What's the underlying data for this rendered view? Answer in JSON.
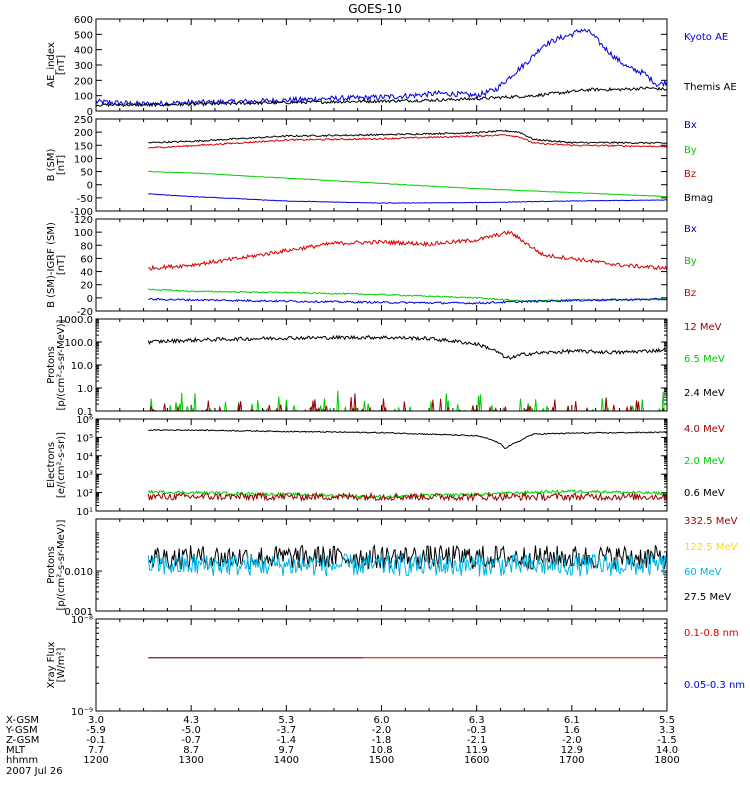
{
  "title": "GOES-10",
  "colors": {
    "black": "#000000",
    "blue": "#0000dd",
    "red": "#d40000",
    "green": "#00cc00",
    "yellow": "#ffdd00",
    "cyan": "#00b4e6",
    "brown": "#990000",
    "purple": "#7a0080"
  },
  "chart_data": [
    {
      "type": "line",
      "ylabel_lines": [
        "AE_index",
        "[nT]"
      ],
      "yscale": "linear",
      "ylim": [
        0,
        600
      ],
      "yticks": [
        0,
        100,
        200,
        300,
        400,
        500,
        600
      ],
      "ytick_labels": [
        "0",
        "100",
        "200",
        "300",
        "400",
        "500",
        "600"
      ],
      "legend": [
        {
          "text": "Kyoto AE",
          "color": "#0000dd"
        },
        {
          "text": "Themis AE",
          "color": "#000000"
        }
      ],
      "series": [
        {
          "name": "Kyoto AE",
          "color": "#0000dd",
          "x": [
            12.0,
            12.5,
            13.0,
            13.5,
            14.0,
            14.4,
            14.8,
            15.0,
            15.3,
            15.6,
            15.8,
            16.0,
            16.2,
            16.4,
            16.55,
            16.7,
            16.85,
            17.0,
            17.1,
            17.2,
            17.3,
            17.45,
            17.6,
            17.75,
            17.9,
            18.0
          ],
          "y": [
            60,
            45,
            55,
            60,
            70,
            80,
            85,
            90,
            100,
            115,
            110,
            100,
            140,
            250,
            330,
            430,
            470,
            500,
            530,
            510,
            440,
            350,
            280,
            250,
            170,
            190
          ],
          "noise": 18
        },
        {
          "name": "Themis AE",
          "color": "#000000",
          "x": [
            12.0,
            12.5,
            13.0,
            13.5,
            14.0,
            14.5,
            15.0,
            15.5,
            16.0,
            16.3,
            16.6,
            16.9,
            17.2,
            17.5,
            17.8,
            18.0
          ],
          "y": [
            40,
            40,
            45,
            50,
            55,
            60,
            65,
            70,
            80,
            90,
            100,
            120,
            140,
            140,
            150,
            140
          ],
          "noise": 10
        }
      ]
    },
    {
      "type": "line",
      "ylabel_lines": [
        "B (SM)",
        "[nT]"
      ],
      "yscale": "linear",
      "ylim": [
        -100,
        250
      ],
      "yticks": [
        -100,
        -50,
        0,
        50,
        100,
        150,
        200,
        250
      ],
      "ytick_labels": [
        "-100",
        "-50",
        "0",
        "50",
        "100",
        "150",
        "200",
        "250"
      ],
      "legend": [
        {
          "text": "Bx",
          "color": "#0000dd"
        },
        {
          "text": "By",
          "color": "#00cc00"
        },
        {
          "text": "Bz",
          "color": "#d40000"
        },
        {
          "text": "Bmag",
          "color": "#000000"
        }
      ],
      "series": [
        {
          "name": "Bmag",
          "color": "#000000",
          "x": [
            12.55,
            13.0,
            14.0,
            15.0,
            16.0,
            16.3,
            16.45,
            16.6,
            17.0,
            17.5,
            18.0
          ],
          "y": [
            160,
            165,
            185,
            190,
            198,
            205,
            200,
            172,
            160,
            160,
            158
          ],
          "noise": 3
        },
        {
          "name": "Bz",
          "color": "#d40000",
          "x": [
            12.55,
            13.0,
            14.0,
            15.0,
            16.0,
            16.3,
            16.45,
            16.6,
            17.0,
            17.5,
            18.0
          ],
          "y": [
            140,
            148,
            170,
            175,
            185,
            190,
            182,
            158,
            150,
            148,
            145
          ],
          "noise": 3
        },
        {
          "name": "By",
          "color": "#00cc00",
          "x": [
            12.55,
            13.0,
            14.0,
            15.0,
            16.0,
            17.0,
            18.0
          ],
          "y": [
            50,
            45,
            25,
            5,
            -15,
            -30,
            -45
          ],
          "noise": 1
        },
        {
          "name": "Bx",
          "color": "#0000dd",
          "x": [
            12.55,
            13.0,
            14.0,
            15.0,
            16.0,
            17.0,
            18.0
          ],
          "y": [
            -35,
            -45,
            -62,
            -70,
            -68,
            -62,
            -58
          ],
          "noise": 1
        }
      ]
    },
    {
      "type": "line",
      "ylabel_lines": [
        "B (SM)-IGRF (SM)",
        "[nT]"
      ],
      "yscale": "linear",
      "ylim": [
        -20,
        120
      ],
      "yticks": [
        -20,
        0,
        20,
        40,
        60,
        80,
        100,
        120
      ],
      "ytick_labels": [
        "-20",
        "0",
        "20",
        "40",
        "60",
        "80",
        "100",
        "120"
      ],
      "legend": [
        {
          "text": "Bx",
          "color": "#0000dd"
        },
        {
          "text": "By",
          "color": "#00cc00"
        },
        {
          "text": "Bz",
          "color": "#d40000"
        }
      ],
      "series": [
        {
          "name": "Bz",
          "color": "#d40000",
          "x": [
            12.55,
            13.0,
            13.5,
            14.0,
            14.5,
            15.0,
            15.5,
            16.0,
            16.2,
            16.35,
            16.5,
            16.7,
            17.0,
            17.5,
            18.0
          ],
          "y": [
            45,
            50,
            60,
            72,
            83,
            85,
            82,
            88,
            95,
            100,
            85,
            65,
            60,
            50,
            45
          ],
          "noise": 3
        },
        {
          "name": "By",
          "color": "#00cc00",
          "x": [
            12.55,
            13.0,
            14.0,
            15.0,
            16.0,
            16.5,
            17.0,
            18.0
          ],
          "y": [
            13,
            10,
            8,
            5,
            0,
            -5,
            -3,
            -2
          ],
          "noise": 1
        },
        {
          "name": "Bx",
          "color": "#0000dd",
          "x": [
            12.55,
            13.0,
            14.0,
            15.0,
            16.0,
            16.4,
            17.0,
            18.0
          ],
          "y": [
            -2,
            -3,
            -5,
            -7,
            -8,
            -6,
            -4,
            -2
          ],
          "noise": 1.5
        }
      ]
    },
    {
      "type": "line",
      "ylabel_lines": [
        "Protons",
        "[p/(cm²-s-sr-MeV)]"
      ],
      "yscale": "log",
      "ylim": [
        0.1,
        1000
      ],
      "yticks": [
        0.1,
        1,
        10,
        100,
        1000
      ],
      "ytick_labels": [
        "0.1",
        "1.0",
        "10.0",
        "100.0",
        "1000.0"
      ],
      "legend": [
        {
          "text": "12 MeV",
          "color": "#990000"
        },
        {
          "text": "6.5 MeV",
          "color": "#00cc00"
        },
        {
          "text": "2.4 MeV",
          "color": "#000000"
        }
      ],
      "series": [
        {
          "name": "2.4 MeV",
          "color": "#000000",
          "x": [
            12.55,
            13.0,
            14.0,
            15.0,
            15.5,
            16.0,
            16.2,
            16.3,
            16.4,
            16.5,
            17.0,
            17.5,
            18.0
          ],
          "y": [
            100,
            120,
            150,
            160,
            140,
            80,
            40,
            20,
            22,
            30,
            40,
            35,
            45
          ],
          "noise_log": 0.08
        },
        {
          "name": "6.5 MeV",
          "color": "#00cc00",
          "x": [
            12.55,
            18.0
          ],
          "y": [
            0.15,
            0.15
          ],
          "spikes": true
        },
        {
          "name": "12 MeV",
          "color": "#990000",
          "x": [
            12.55,
            18.0
          ],
          "y": [
            0.12,
            0.12
          ],
          "spikes": true
        }
      ]
    },
    {
      "type": "line",
      "ylabel_lines": [
        "Electrons",
        "[e/(cm²-s-sr)]"
      ],
      "yscale": "log",
      "ylim": [
        10,
        1000000
      ],
      "yticks": [
        10,
        100,
        1000,
        10000,
        100000,
        1000000
      ],
      "ytick_labels": [
        "10¹",
        "10²",
        "10³",
        "10⁴",
        "10⁵",
        "10⁶"
      ],
      "legend": [
        {
          "text": "4.0 MeV",
          "color": "#990000"
        },
        {
          "text": "2.0 MeV",
          "color": "#00cc00"
        },
        {
          "text": "0.6 MeV",
          "color": "#000000"
        }
      ],
      "series": [
        {
          "name": "0.6 MeV",
          "color": "#000000",
          "x": [
            12.55,
            13.0,
            14.0,
            15.0,
            15.5,
            16.0,
            16.2,
            16.3,
            16.45,
            16.6,
            17.0,
            17.5,
            18.0
          ],
          "y": [
            250000,
            250000,
            210000,
            180000,
            150000,
            120000,
            60000,
            25000,
            60000,
            150000,
            170000,
            180000,
            190000
          ],
          "noise_log": 0.03
        },
        {
          "name": "2.0 MeV",
          "color": "#00cc00",
          "x": [
            12.55,
            13.5,
            15.0,
            16.0,
            17.0,
            18.0
          ],
          "y": [
            110,
            90,
            60,
            80,
            120,
            90
          ],
          "noise_log": 0.08
        },
        {
          "name": "4.0 MeV",
          "color": "#990000",
          "x": [
            12.55,
            18.0
          ],
          "y": [
            60,
            60
          ],
          "noise_log": 0.2
        }
      ]
    },
    {
      "type": "line",
      "ylabel_lines": [
        "Protons",
        "[p/(cm²-s-sr-MeV)]"
      ],
      "yscale": "log",
      "ylim": [
        0.001,
        0.2
      ],
      "yticks": [
        0.001,
        0.01
      ],
      "ytick_labels": [
        "0.001",
        "0.010"
      ],
      "legend": [
        {
          "text": "332.5 MeV",
          "color": "#990000"
        },
        {
          "text": "122.5 MeV",
          "color": "#ffdd00"
        },
        {
          "text": "60 MeV",
          "color": "#00b4e6"
        },
        {
          "text": "27.5 MeV",
          "color": "#000000"
        }
      ],
      "series": [
        {
          "name": "27.5 MeV",
          "color": "#000000",
          "x": [
            12.55,
            18.0
          ],
          "y": [
            0.022,
            0.022
          ],
          "noise_log": 0.3
        },
        {
          "name": "60 MeV",
          "color": "#00b4e6",
          "x": [
            12.55,
            18.0
          ],
          "y": [
            0.014,
            0.014
          ],
          "noise_log": 0.28
        }
      ]
    },
    {
      "type": "line",
      "ylabel_lines": [
        "Xray Flux",
        "[W/m²]"
      ],
      "yscale": "log",
      "ylim": [
        1e-09,
        1e-08
      ],
      "yticks": [
        1e-09,
        1e-08
      ],
      "ytick_labels": [
        "10⁻⁹",
        "10⁻⁸"
      ],
      "legend": [
        {
          "text": "0.1-0.8 nm",
          "color": "#d40000"
        },
        {
          "text": "0.05-0.3 nm",
          "color": "#0000dd"
        }
      ],
      "series": [
        {
          "name": "0.05-0.3 nm",
          "color": "#0000dd",
          "x": [
            12.55,
            14.8
          ],
          "y": [
            3.8e-09,
            3.8e-09
          ]
        },
        {
          "name": "0.1-0.8 nm",
          "color": "#d40000",
          "x": [
            12.55,
            18.0
          ],
          "y": [
            3.8e-09,
            3.8e-09
          ]
        }
      ]
    }
  ],
  "xaxis": {
    "xlim": [
      12.0,
      18.0
    ],
    "hour_ticks": [
      12,
      13,
      14,
      15,
      16,
      17,
      18
    ],
    "row_labels": [
      "X-GSM",
      "Y-GSM",
      "Z-GSM",
      "MLT",
      "hhmm"
    ],
    "columns": [
      [
        "3.0",
        "-5.9",
        "-0.1",
        "7.7",
        "1200"
      ],
      [
        "4.3",
        "-5.0",
        "-0.7",
        "8.7",
        "1300"
      ],
      [
        "5.3",
        "-3.7",
        "-1.4",
        "9.7",
        "1400"
      ],
      [
        "6.0",
        "-2.0",
        "-1.8",
        "10.8",
        "1500"
      ],
      [
        "6.3",
        "-0.3",
        "-2.1",
        "11.9",
        "1600"
      ],
      [
        "6.1",
        "1.6",
        "-2.0",
        "12.9",
        "1700"
      ],
      [
        "5.5",
        "3.3",
        "-1.5",
        "14.0",
        "1800"
      ]
    ],
    "date": "2007 Jul 26"
  }
}
